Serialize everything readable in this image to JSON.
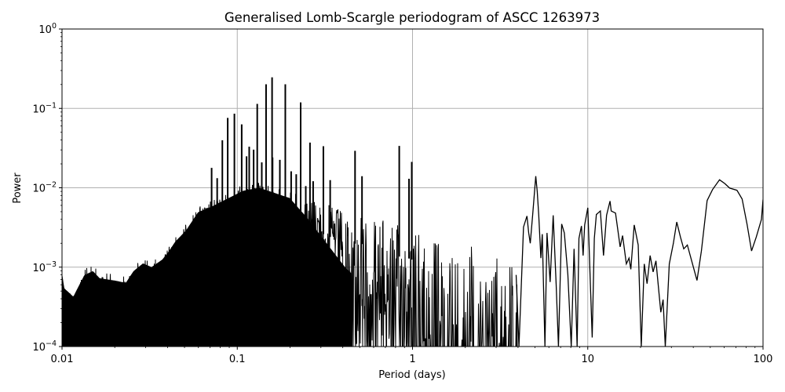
{
  "chart_data": {
    "type": "line",
    "title": "Generalised Lomb-Scargle periodogram of ASCC 1263973",
    "xlabel": "Period (days)",
    "ylabel": "Power",
    "xscale": "log",
    "yscale": "log",
    "xlim": [
      0.01,
      100
    ],
    "ylim": [
      0.0001,
      1
    ],
    "grid": true,
    "legend": null,
    "x_ticks": [
      {
        "value": 0.01,
        "label": "0.01"
      },
      {
        "value": 0.1,
        "label": "0.1"
      },
      {
        "value": 1,
        "label": "1"
      },
      {
        "value": 10,
        "label": "10"
      },
      {
        "value": 100,
        "label": "100"
      }
    ],
    "y_ticks": [
      {
        "value": 1,
        "base": "10",
        "exp": "0"
      },
      {
        "value": 0.1,
        "base": "10",
        "exp": "−1"
      },
      {
        "value": 0.01,
        "base": "10",
        "exp": "−2"
      },
      {
        "value": 0.001,
        "base": "10",
        "exp": "−3"
      },
      {
        "value": 0.0001,
        "base": "10",
        "exp": "−4"
      }
    ],
    "colors": {
      "line": "#000000",
      "grid": "#b0b0b0",
      "axes": "#000000"
    },
    "dense_region_envelope": [
      [
        0.01,
        0.00102
      ],
      [
        0.0103,
        0.00065
      ],
      [
        0.0116,
        0.00051
      ],
      [
        0.0134,
        0.00095
      ],
      [
        0.015,
        0.00107
      ],
      [
        0.0164,
        0.00087
      ],
      [
        0.0202,
        0.00081
      ],
      [
        0.0231,
        0.00076
      ],
      [
        0.0256,
        0.00107
      ],
      [
        0.029,
        0.00134
      ],
      [
        0.0324,
        0.0012
      ],
      [
        0.0374,
        0.0015
      ],
      [
        0.0407,
        0.0019
      ],
      [
        0.0442,
        0.0025
      ],
      [
        0.0511,
        0.0035
      ],
      [
        0.0597,
        0.0059
      ],
      [
        0.072,
        0.007
      ],
      [
        0.0884,
        0.0088
      ],
      [
        0.108,
        0.011
      ],
      [
        0.133,
        0.012
      ],
      [
        0.164,
        0.0103
      ],
      [
        0.202,
        0.0088
      ],
      [
        0.248,
        0.0079
      ],
      [
        0.337,
        0.006
      ],
      [
        0.414,
        0.005
      ],
      [
        0.565,
        0.0048
      ],
      [
        0.771,
        0.0035
      ],
      [
        0.95,
        0.0032
      ],
      [
        1.29,
        0.0025
      ],
      [
        1.76,
        0.0022
      ],
      [
        2.41,
        0.0019
      ],
      [
        3.29,
        0.0016
      ],
      [
        4.05,
        0.0013
      ]
    ],
    "peaks": [
      [
        0.0714,
        0.0178
      ],
      [
        0.0768,
        0.0132
      ],
      [
        0.0822,
        0.0397
      ],
      [
        0.0882,
        0.0758
      ],
      [
        0.0963,
        0.0858
      ],
      [
        0.106,
        0.0629
      ],
      [
        0.113,
        0.0249
      ],
      [
        0.117,
        0.0329
      ],
      [
        0.124,
        0.0302
      ],
      [
        0.13,
        0.114
      ],
      [
        0.138,
        0.0209
      ],
      [
        0.146,
        0.201
      ],
      [
        0.158,
        0.246
      ],
      [
        0.159,
        0.0241
      ],
      [
        0.175,
        0.0225
      ],
      [
        0.188,
        0.201
      ],
      [
        0.203,
        0.0161
      ],
      [
        0.217,
        0.0148
      ],
      [
        0.23,
        0.119
      ],
      [
        0.246,
        0.0105
      ],
      [
        0.26,
        0.0371
      ],
      [
        0.271,
        0.0121
      ],
      [
        0.31,
        0.0334
      ],
      [
        0.339,
        0.0125
      ],
      [
        0.47,
        0.0292
      ],
      [
        0.515,
        0.014
      ],
      [
        0.84,
        0.0337
      ],
      [
        0.955,
        0.013
      ],
      [
        0.99,
        0.0212
      ]
    ],
    "smooth_curve": [
      [
        3.9,
        0.0008
      ],
      [
        4.05,
        0.0001
      ],
      [
        4.3,
        0.0032
      ],
      [
        4.5,
        0.0044
      ],
      [
        4.6,
        0.0027
      ],
      [
        4.7,
        0.002
      ],
      [
        4.85,
        0.0046
      ],
      [
        5.05,
        0.014
      ],
      [
        5.15,
        0.0089
      ],
      [
        5.25,
        0.0045
      ],
      [
        5.4,
        0.0013
      ],
      [
        5.5,
        0.0026
      ],
      [
        5.7,
        0.0001
      ],
      [
        5.85,
        0.0027
      ],
      [
        6.1,
        0.00065
      ],
      [
        6.35,
        0.0045
      ],
      [
        6.6,
        0.0006
      ],
      [
        6.8,
        0.0001
      ],
      [
        7.1,
        0.0035
      ],
      [
        7.35,
        0.0027
      ],
      [
        7.7,
        0.0008
      ],
      [
        8.05,
        0.0001
      ],
      [
        8.35,
        0.0017
      ],
      [
        8.7,
        0.0001
      ],
      [
        8.9,
        0.0023
      ],
      [
        9.2,
        0.0033
      ],
      [
        9.4,
        0.0014
      ],
      [
        9.6,
        0.0034
      ],
      [
        10.0,
        0.0056
      ],
      [
        10.35,
        0.0006
      ],
      [
        10.6,
        0.00013
      ],
      [
        10.9,
        0.0023
      ],
      [
        11.2,
        0.0046
      ],
      [
        11.8,
        0.0051
      ],
      [
        12.3,
        0.0014
      ],
      [
        12.8,
        0.0045
      ],
      [
        13.4,
        0.0068
      ],
      [
        13.6,
        0.0051
      ],
      [
        14.4,
        0.0048
      ],
      [
        15.3,
        0.0018
      ],
      [
        15.8,
        0.0025
      ],
      [
        16.6,
        0.0011
      ],
      [
        17.2,
        0.0013
      ],
      [
        17.6,
        0.00094
      ],
      [
        18.4,
        0.0034
      ],
      [
        19.4,
        0.0019
      ],
      [
        20.2,
        0.0001
      ],
      [
        21.0,
        0.0011
      ],
      [
        21.8,
        0.00062
      ],
      [
        22.7,
        0.0014
      ],
      [
        23.6,
        0.00087
      ],
      [
        24.5,
        0.0012
      ],
      [
        26.1,
        0.00027
      ],
      [
        26.9,
        0.00039
      ],
      [
        27.7,
        0.0001
      ],
      [
        29.2,
        0.0011
      ],
      [
        30.8,
        0.002
      ],
      [
        32.2,
        0.0037
      ],
      [
        33.8,
        0.0024
      ],
      [
        35.3,
        0.0017
      ],
      [
        37.0,
        0.0019
      ],
      [
        42.0,
        0.00068
      ],
      [
        44.5,
        0.0016
      ],
      [
        48.0,
        0.0069
      ],
      [
        51.5,
        0.0095
      ],
      [
        56.5,
        0.0126
      ],
      [
        60.5,
        0.0113
      ],
      [
        64.5,
        0.0099
      ],
      [
        71.0,
        0.0093
      ],
      [
        76.0,
        0.0072
      ],
      [
        81.0,
        0.0035
      ],
      [
        86.0,
        0.0016
      ],
      [
        91.5,
        0.0024
      ],
      [
        98.0,
        0.004
      ],
      [
        100.0,
        0.0071
      ]
    ]
  }
}
